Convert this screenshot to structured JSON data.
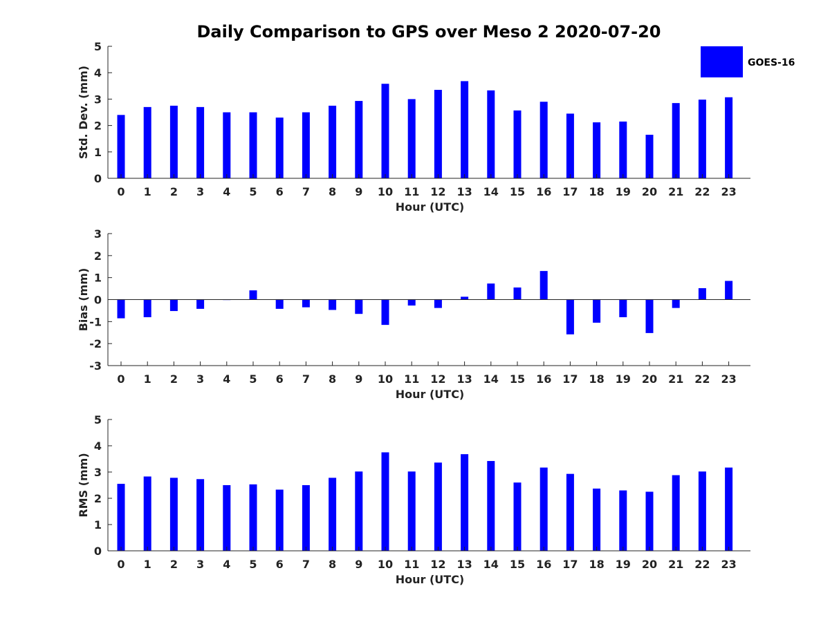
{
  "chart_data": {
    "type": "bar",
    "title": "Daily Comparison to GPS over Meso 2 2020-07-20",
    "legend": {
      "label": "GOES-16",
      "placement": "top-right"
    },
    "series_color": "#0000ff",
    "panels": [
      {
        "id": "std",
        "xlabel": "Hour (UTC)",
        "ylabel": "Std. Dev. (mm)",
        "ylim": [
          0,
          5
        ],
        "yticks": [
          "0",
          "1",
          "2",
          "3",
          "4",
          "5"
        ],
        "categories": [
          "0",
          "1",
          "2",
          "3",
          "4",
          "5",
          "6",
          "7",
          "8",
          "9",
          "10",
          "11",
          "12",
          "13",
          "14",
          "15",
          "16",
          "17",
          "18",
          "19",
          "20",
          "21",
          "22",
          "23"
        ],
        "series": [
          {
            "name": "GOES-16",
            "values": [
              2.4,
              2.7,
              2.75,
              2.7,
              2.5,
              2.5,
              2.3,
              2.5,
              2.75,
              2.93,
              3.58,
              3.0,
              3.35,
              3.68,
              3.33,
              2.57,
              2.9,
              2.45,
              2.12,
              2.15,
              1.65,
              2.85,
              2.98,
              3.07
            ]
          }
        ]
      },
      {
        "id": "bias",
        "xlabel": "Hour (UTC)",
        "ylabel": "Bias (mm)",
        "ylim": [
          -3,
          3
        ],
        "yticks": [
          "-3",
          "-2",
          "-1",
          "0",
          "1",
          "2",
          "3"
        ],
        "categories": [
          "0",
          "1",
          "2",
          "3",
          "4",
          "5",
          "6",
          "7",
          "8",
          "9",
          "10",
          "11",
          "12",
          "13",
          "14",
          "15",
          "16",
          "17",
          "18",
          "19",
          "20",
          "21",
          "22",
          "23"
        ],
        "series": [
          {
            "name": "GOES-16",
            "values": [
              -0.85,
              -0.8,
              -0.52,
              -0.42,
              -0.02,
              0.42,
              -0.42,
              -0.35,
              -0.47,
              -0.65,
              -1.15,
              -0.27,
              -0.38,
              0.13,
              0.73,
              0.55,
              1.3,
              -1.58,
              -1.05,
              -0.8,
              -1.52,
              -0.38,
              0.52,
              0.85
            ]
          }
        ]
      },
      {
        "id": "rms",
        "xlabel": "Hour (UTC)",
        "ylabel": "RMS (mm)",
        "ylim": [
          0,
          5
        ],
        "yticks": [
          "0",
          "1",
          "2",
          "3",
          "4",
          "5"
        ],
        "categories": [
          "0",
          "1",
          "2",
          "3",
          "4",
          "5",
          "6",
          "7",
          "8",
          "9",
          "10",
          "11",
          "12",
          "13",
          "14",
          "15",
          "16",
          "17",
          "18",
          "19",
          "20",
          "21",
          "22",
          "23"
        ],
        "series": [
          {
            "name": "GOES-16",
            "values": [
              2.55,
              2.83,
              2.78,
              2.73,
              2.5,
              2.53,
              2.33,
              2.5,
              2.78,
              3.02,
              3.75,
              3.02,
              3.36,
              3.68,
              3.42,
              2.6,
              3.17,
              2.93,
              2.37,
              2.3,
              2.25,
              2.88,
              3.02,
              3.17
            ]
          }
        ]
      }
    ]
  }
}
